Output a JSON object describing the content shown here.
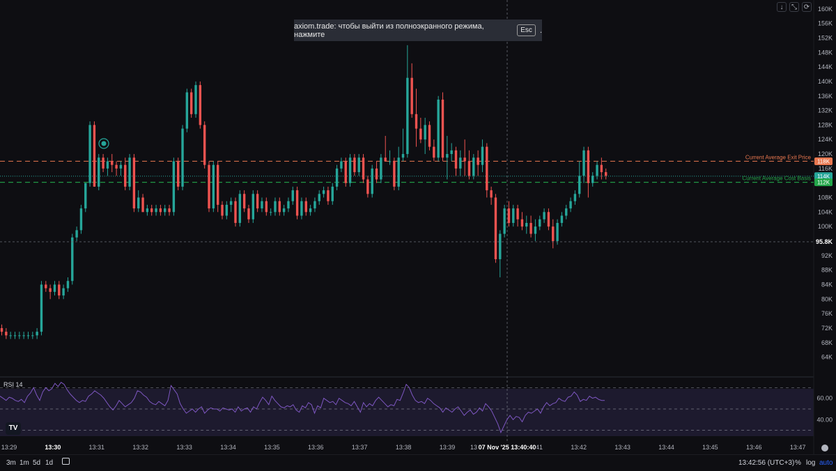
{
  "toolbar": {
    "download_icon": "arrow-down-icon",
    "fullscreen_exit_icon": "compress-icon",
    "refresh_icon": "refresh-icon",
    "download_glyph": "↓",
    "fullscreen_glyph": "⤡",
    "refresh_glyph": "⟳"
  },
  "toast": {
    "text": "axiom.trade: чтобы выйти из полноэкранного режима, нажмите",
    "key": "Esc",
    "suffix": "."
  },
  "price_axis": {
    "ticks": [
      "160K",
      "156K",
      "152K",
      "148K",
      "144K",
      "140K",
      "136K",
      "132K",
      "128K",
      "124K",
      "120K",
      "116K",
      "108K",
      "104K",
      "100K",
      "92K",
      "88K",
      "84K",
      "80K",
      "76K",
      "72K",
      "68K",
      "64K"
    ],
    "tick_values": [
      160,
      156,
      152,
      148,
      144,
      140,
      136,
      132,
      128,
      124,
      120,
      116,
      108,
      104,
      100,
      92,
      88,
      84,
      80,
      76,
      72,
      68,
      64
    ],
    "min": 59.5,
    "max": 161.5,
    "crosshair_label": "95.8K",
    "crosshair_value": 95.8
  },
  "price_lines": [
    {
      "name": "Current Average Exit Price",
      "label": "118K",
      "value": 118,
      "color": "#e8774f",
      "style": "dashed"
    },
    {
      "name": "",
      "label": "114K",
      "value": 113.9,
      "color": "#26a69a",
      "style": "dotted"
    },
    {
      "name": "Current Average Cost Basis",
      "label": "112K",
      "value": 112.2,
      "color": "#23a64a",
      "style": "dashed"
    }
  ],
  "rsi": {
    "title": "RSI 14",
    "ticks": [
      "60.00",
      "40.00"
    ],
    "tick_values": [
      60,
      40
    ],
    "upper": 70,
    "lower": 30,
    "mid": 50,
    "values": [
      62,
      60,
      58,
      61,
      60,
      58,
      57,
      59,
      56,
      62,
      65,
      70,
      63,
      58,
      66,
      70,
      67,
      69,
      74,
      71,
      75,
      73,
      68,
      64,
      61,
      58,
      56,
      58,
      57,
      62,
      64,
      67,
      65,
      63,
      60,
      56,
      52,
      49,
      53,
      58,
      55,
      52,
      54,
      56,
      60,
      67,
      66,
      63,
      61,
      57,
      55,
      54,
      57,
      55,
      53,
      58,
      72,
      68,
      64,
      55,
      50,
      46,
      48,
      50,
      47,
      50,
      52,
      46,
      49,
      51,
      50,
      50,
      48,
      51,
      50,
      49,
      50,
      47,
      52,
      48,
      50,
      51,
      47,
      52,
      50,
      56,
      61,
      58,
      54,
      62,
      58,
      55,
      52,
      51,
      53,
      52,
      54,
      49,
      47,
      53,
      51,
      56,
      54,
      46,
      53,
      51,
      60,
      58,
      56,
      57,
      54,
      60,
      58,
      56,
      55,
      53,
      57,
      52,
      47,
      56,
      52,
      55,
      53,
      58,
      61,
      58,
      55,
      52,
      54,
      53,
      59,
      58,
      65,
      73,
      70,
      63,
      58,
      56,
      57,
      55,
      60,
      58,
      55,
      53,
      51,
      47,
      51,
      49,
      47,
      50,
      52,
      48,
      44,
      47,
      49,
      45,
      47,
      51,
      48,
      55,
      52,
      48,
      42,
      36,
      28,
      34,
      40,
      44,
      40,
      43,
      42,
      38,
      44,
      47,
      46,
      48,
      50,
      46,
      52,
      56,
      53,
      55,
      56,
      60,
      58,
      57,
      61,
      62,
      66,
      63,
      57,
      59,
      58,
      62,
      60,
      61,
      59,
      58,
      58
    ]
  },
  "time_axis": {
    "ticks": [
      {
        "label": "13:29",
        "bold": false
      },
      {
        "label": "13:30",
        "bold": true
      },
      {
        "label": "13:31",
        "bold": false
      },
      {
        "label": "13:32",
        "bold": false
      },
      {
        "label": "13:33",
        "bold": false
      },
      {
        "label": "13:34",
        "bold": false
      },
      {
        "label": "13:35",
        "bold": false
      },
      {
        "label": "13:36",
        "bold": false
      },
      {
        "label": "13:37",
        "bold": false
      },
      {
        "label": "13:38",
        "bold": false
      },
      {
        "label": "13:39",
        "bold": false
      },
      {
        "label": "13",
        "bold": false
      },
      {
        "label": "13:41",
        "bold": false
      },
      {
        "label": "13:42",
        "bold": false
      },
      {
        "label": "13:43",
        "bold": false
      },
      {
        "label": "13:44",
        "bold": false
      },
      {
        "label": "13:45",
        "bold": false
      },
      {
        "label": "13:46",
        "bold": false
      },
      {
        "label": "13:47",
        "bold": false
      }
    ],
    "crosshair_label": "07 Nov '25    13:40:40"
  },
  "candles": [
    [
      72,
      73,
      70,
      71
    ],
    [
      71,
      72,
      69,
      70
    ],
    [
      70,
      71,
      69,
      70
    ],
    [
      70,
      71,
      69,
      70
    ],
    [
      70,
      71,
      69,
      70
    ],
    [
      70,
      71,
      69,
      70
    ],
    [
      70,
      71,
      69,
      70
    ],
    [
      70,
      71,
      69,
      70
    ],
    [
      70,
      72,
      69,
      71
    ],
    [
      71,
      85,
      70,
      84
    ],
    [
      84,
      85,
      82,
      83
    ],
    [
      83,
      84,
      80,
      82
    ],
    [
      82,
      85,
      81,
      84
    ],
    [
      84,
      85,
      80,
      81
    ],
    [
      81,
      84,
      80,
      83
    ],
    [
      83,
      86,
      82,
      85
    ],
    [
      85,
      98,
      84,
      97
    ],
    [
      97,
      100,
      96,
      99
    ],
    [
      99,
      106,
      98,
      105
    ],
    [
      105,
      112,
      104,
      112
    ],
    [
      112,
      129,
      111,
      128
    ],
    [
      128,
      129,
      111,
      111
    ],
    [
      111,
      120,
      110,
      119
    ],
    [
      119,
      120,
      115,
      116
    ],
    [
      116,
      119,
      114,
      118
    ],
    [
      118,
      120,
      115,
      117
    ],
    [
      117,
      118,
      114,
      116
    ],
    [
      116,
      118,
      114,
      117
    ],
    [
      117,
      119,
      110,
      111
    ],
    [
      111,
      120,
      110,
      119
    ],
    [
      119,
      120,
      104,
      105
    ],
    [
      105,
      110,
      104,
      108
    ],
    [
      108,
      109,
      104,
      104
    ],
    [
      104,
      106,
      103,
      105
    ],
    [
      105,
      106,
      103,
      104
    ],
    [
      104,
      106,
      103,
      105
    ],
    [
      105,
      106,
      103,
      104
    ],
    [
      104,
      106,
      103,
      105
    ],
    [
      105,
      106,
      103,
      104
    ],
    [
      104,
      119,
      103,
      118
    ],
    [
      118,
      119,
      110,
      111
    ],
    [
      111,
      128,
      110,
      127
    ],
    [
      127,
      138,
      126,
      137
    ],
    [
      137,
      138,
      130,
      131
    ],
    [
      131,
      140,
      130,
      139
    ],
    [
      139,
      140,
      127,
      128
    ],
    [
      128,
      129,
      116,
      117
    ],
    [
      117,
      118,
      104,
      105
    ],
    [
      105,
      118,
      104,
      117
    ],
    [
      117,
      118,
      104,
      106
    ],
    [
      106,
      107,
      102,
      103
    ],
    [
      103,
      107,
      102,
      106
    ],
    [
      106,
      108,
      104,
      107
    ],
    [
      107,
      108,
      100,
      101
    ],
    [
      101,
      110,
      100,
      109
    ],
    [
      109,
      110,
      104,
      105
    ],
    [
      105,
      106,
      101,
      102
    ],
    [
      102,
      110,
      101,
      109
    ],
    [
      109,
      110,
      104,
      105
    ],
    [
      105,
      108,
      104,
      107
    ],
    [
      107,
      108,
      103,
      104
    ],
    [
      104,
      105,
      103,
      104
    ],
    [
      104,
      108,
      103,
      107
    ],
    [
      107,
      108,
      103,
      104
    ],
    [
      104,
      106,
      103,
      105
    ],
    [
      105,
      108,
      104,
      107
    ],
    [
      107,
      111,
      106,
      110
    ],
    [
      110,
      111,
      102,
      103
    ],
    [
      103,
      108,
      102,
      107
    ],
    [
      107,
      108,
      103,
      104
    ],
    [
      104,
      106,
      103,
      105
    ],
    [
      105,
      108,
      104,
      107
    ],
    [
      107,
      110,
      106,
      109
    ],
    [
      109,
      111,
      108,
      110
    ],
    [
      110,
      111,
      106,
      107
    ],
    [
      107,
      112,
      106,
      111
    ],
    [
      111,
      117,
      110,
      116
    ],
    [
      116,
      119,
      115,
      118
    ],
    [
      118,
      119,
      111,
      112
    ],
    [
      112,
      120,
      111,
      119
    ],
    [
      119,
      120,
      114,
      115
    ],
    [
      115,
      120,
      114,
      119
    ],
    [
      119,
      120,
      112,
      113
    ],
    [
      113,
      114,
      108,
      109
    ],
    [
      109,
      117,
      108,
      116
    ],
    [
      116,
      118,
      112,
      113
    ],
    [
      113,
      120,
      112,
      119
    ],
    [
      119,
      125,
      118,
      118
    ],
    [
      118,
      121,
      117,
      118
    ],
    [
      118,
      119,
      110,
      111
    ],
    [
      111,
      122,
      110,
      119
    ],
    [
      119,
      127,
      118,
      120
    ],
    [
      120,
      150,
      119,
      141
    ],
    [
      141,
      145,
      130,
      131
    ],
    [
      131,
      138,
      122,
      127
    ],
    [
      127,
      130,
      123,
      124
    ],
    [
      124,
      130,
      120,
      128
    ],
    [
      128,
      129,
      121,
      122
    ],
    [
      122,
      124,
      118,
      119
    ],
    [
      119,
      136,
      118,
      135
    ],
    [
      135,
      137,
      118,
      119
    ],
    [
      119,
      125,
      113,
      120
    ],
    [
      120,
      123,
      118,
      121
    ],
    [
      121,
      122,
      114,
      116
    ],
    [
      116,
      121,
      114,
      119
    ],
    [
      119,
      124,
      114,
      118
    ],
    [
      118,
      121,
      113,
      114
    ],
    [
      114,
      120,
      113,
      119
    ],
    [
      119,
      121,
      114,
      117
    ],
    [
      117,
      124,
      115,
      122
    ],
    [
      122,
      123,
      108,
      110
    ],
    [
      110,
      111,
      106,
      108
    ],
    [
      108,
      109,
      90,
      91
    ],
    [
      91,
      99,
      86,
      98
    ],
    [
      98,
      106,
      97,
      105
    ],
    [
      105,
      107,
      100,
      101
    ],
    [
      101,
      106,
      100,
      105
    ],
    [
      105,
      106,
      100,
      102
    ],
    [
      102,
      104,
      99,
      100
    ],
    [
      100,
      103,
      98,
      101
    ],
    [
      101,
      103,
      97,
      98
    ],
    [
      98,
      102,
      96,
      100
    ],
    [
      100,
      103,
      99,
      102
    ],
    [
      102,
      105,
      101,
      104
    ],
    [
      104,
      105,
      99,
      100
    ],
    [
      100,
      102,
      94,
      96
    ],
    [
      96,
      102,
      95,
      101
    ],
    [
      101,
      104,
      100,
      103
    ],
    [
      103,
      106,
      102,
      105
    ],
    [
      105,
      108,
      104,
      107
    ],
    [
      107,
      110,
      106,
      109
    ],
    [
      109,
      118,
      108,
      114
    ],
    [
      114,
      122,
      112,
      121
    ],
    [
      121,
      122,
      108,
      112
    ],
    [
      112,
      115,
      111,
      114
    ],
    [
      114,
      118,
      113,
      117
    ],
    [
      117,
      119,
      113,
      115
    ],
    [
      115,
      116,
      113,
      114
    ]
  ],
  "footer": {
    "timeframes": [
      "3m",
      "1m",
      "5d",
      "1d"
    ],
    "calendar_icon": "calendar-icon",
    "clock": "13:42:56 (UTC+3)",
    "percent": "%",
    "log": "log",
    "auto": "auto",
    "settings_icon": "gear-icon"
  },
  "colors": {
    "up": "#26a69a",
    "down": "#ef5350",
    "background": "#0e0e12",
    "rsi_line": "#7e57c2",
    "rsi_band": "#1d1a2e"
  },
  "branding": {
    "tv_logo_text": "TV",
    "icon_on_chart": "whale-icon"
  }
}
